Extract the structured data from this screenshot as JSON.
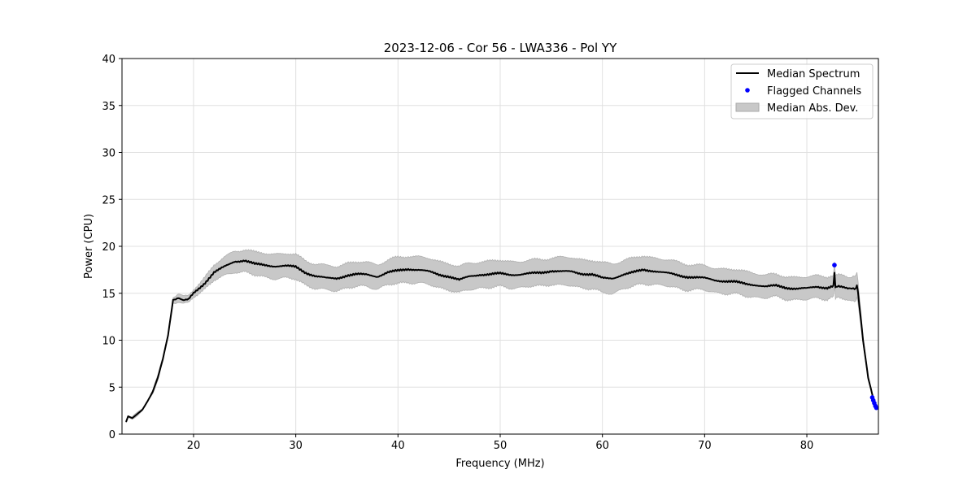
{
  "chart_data": {
    "type": "line",
    "title": "2023-12-06 - Cor 56 - LWA336 - Pol YY",
    "xlabel": "Frequency (MHz)",
    "ylabel": "Power (CPU)",
    "xlim": [
      13,
      87
    ],
    "ylim": [
      0,
      40
    ],
    "xticks": [
      20,
      30,
      40,
      50,
      60,
      70,
      80
    ],
    "yticks": [
      0,
      5,
      10,
      15,
      20,
      25,
      30,
      35,
      40
    ],
    "grid": true,
    "legend_position": "top-right",
    "legend": [
      "Median Spectrum",
      "Flagged Channels",
      "Median Abs. Dev."
    ],
    "colors": {
      "median": "#000000",
      "flagged": "#0000ff",
      "mad": "#c8c8c8"
    },
    "series": [
      {
        "name": "Median Spectrum",
        "x": [
          13.4,
          13.6,
          14,
          15,
          15.5,
          16,
          16.5,
          17,
          17.5,
          18,
          18.5,
          19,
          19.5,
          20,
          21,
          22,
          23,
          24,
          25,
          26,
          27,
          28,
          29,
          30,
          31,
          32,
          33,
          34,
          35,
          36,
          37,
          38,
          39,
          40,
          41,
          42,
          43,
          44,
          45,
          46,
          47,
          48,
          49,
          50,
          51,
          52,
          53,
          54,
          55,
          56,
          57,
          58,
          59,
          60,
          61,
          62,
          63,
          64,
          65,
          66,
          67,
          68,
          69,
          70,
          71,
          72,
          73,
          74,
          75,
          76,
          77,
          78,
          79,
          80,
          81,
          82,
          82.6,
          82.7,
          82.8,
          83,
          84,
          84.8,
          84.9,
          85,
          85.5,
          86,
          86.5,
          86.8
        ],
        "values": [
          1.3,
          1.9,
          1.7,
          2.6,
          3.5,
          4.5,
          6.0,
          8.0,
          10.5,
          14.3,
          14.5,
          14.2,
          14.3,
          15.0,
          16.0,
          17.2,
          17.8,
          18.4,
          18.5,
          18.1,
          18.0,
          17.9,
          17.9,
          17.8,
          17.2,
          16.8,
          16.6,
          16.6,
          16.9,
          17.0,
          17.0,
          16.8,
          17.2,
          17.4,
          17.6,
          17.5,
          17.3,
          17.0,
          16.8,
          16.4,
          16.8,
          17.0,
          17.0,
          17.1,
          17.0,
          17.0,
          17.1,
          17.2,
          17.4,
          17.3,
          17.3,
          17.1,
          17.0,
          16.6,
          16.6,
          17.0,
          17.2,
          17.5,
          17.4,
          17.2,
          17.0,
          16.8,
          16.7,
          16.6,
          16.4,
          16.3,
          16.2,
          16.0,
          15.9,
          15.7,
          15.8,
          15.6,
          15.5,
          15.5,
          15.7,
          15.6,
          15.7,
          17.2,
          15.7,
          15.7,
          15.5,
          15.4,
          15.9,
          15.2,
          10.0,
          6.0,
          3.8,
          2.9
        ]
      },
      {
        "name": "Median Abs. Dev.",
        "mad": [
          0.1,
          0.1,
          0.1,
          0.1,
          0.1,
          0.2,
          0.2,
          0.2,
          0.2,
          0.3,
          0.4,
          0.4,
          0.4,
          0.4,
          0.6,
          0.8,
          1.0,
          1.1,
          1.2,
          1.2,
          1.3,
          1.3,
          1.3,
          1.3,
          1.3,
          1.3,
          1.3,
          1.3,
          1.3,
          1.3,
          1.3,
          1.3,
          1.3,
          1.4,
          1.4,
          1.4,
          1.4,
          1.4,
          1.4,
          1.4,
          1.4,
          1.4,
          1.4,
          1.4,
          1.4,
          1.4,
          1.4,
          1.4,
          1.4,
          1.5,
          1.5,
          1.5,
          1.5,
          1.6,
          1.6,
          1.5,
          1.5,
          1.5,
          1.4,
          1.4,
          1.4,
          1.4,
          1.3,
          1.3,
          1.3,
          1.3,
          1.3,
          1.3,
          1.3,
          1.2,
          1.2,
          1.2,
          1.2,
          1.2,
          1.2,
          1.2,
          1.2,
          1.2,
          1.2,
          1.2,
          1.2,
          1.3,
          1.3,
          1.2,
          0.3,
          0.2,
          0.1,
          0.1
        ]
      },
      {
        "name": "Flagged Channels",
        "x": [
          82.7,
          86.4,
          86.5,
          86.6,
          86.7,
          86.8
        ],
        "values": [
          18.0,
          3.9,
          3.6,
          3.3,
          3.0,
          2.8
        ]
      }
    ]
  }
}
